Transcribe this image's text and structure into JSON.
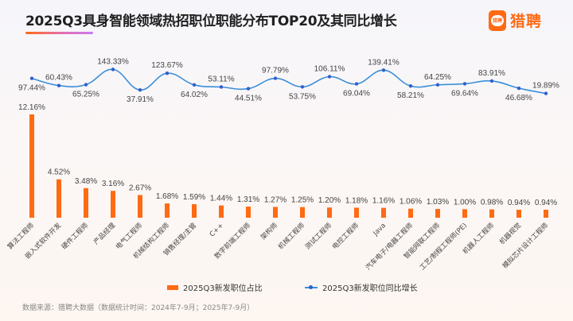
{
  "header": {
    "title": "2025Q3具身智能领域热招职位职能分布TOP20及其同比增长",
    "logo_badge_text": "猎聘",
    "logo_text": "猎聘",
    "brand_color": "#ff6a13"
  },
  "chart_data": {
    "type": "bar+line",
    "title": "2025Q3具身智能领域热招职位职能分布TOP20及其同比增长",
    "categories": [
      "算法工程师",
      "嵌入式软件开发",
      "硬件工程师",
      "产品经理",
      "电气工程师",
      "机械结构工程师",
      "销售经理/主管",
      "C++",
      "数字前端工程师",
      "架构师",
      "机械工程师",
      "测试工程师",
      "电控工程师",
      "Java",
      "汽车电子/电器工程师",
      "智能网联工程师",
      "工艺/制程工程师(PE)",
      "机器人工程师",
      "机器视觉",
      "模拟芯片设计工程师"
    ],
    "series": [
      {
        "name": "2025Q3新发职位占比",
        "type": "bar",
        "color": "#ff6a13",
        "unit": "%",
        "values": [
          12.16,
          4.52,
          3.48,
          3.16,
          2.67,
          1.68,
          1.59,
          1.44,
          1.31,
          1.27,
          1.25,
          1.2,
          1.18,
          1.16,
          1.06,
          1.03,
          1.0,
          0.98,
          0.94,
          0.94
        ],
        "labels": [
          "12.16%",
          "4.52%",
          "3.48%",
          "3.16%",
          "2.67%",
          "1.68%",
          "1.59%",
          "1.44%",
          "1.31%",
          "1.27%",
          "1.25%",
          "1.20%",
          "1.18%",
          "1.16%",
          "1.06%",
          "1.03%",
          "1.00%",
          "0.98%",
          "0.94%",
          "0.94%"
        ]
      },
      {
        "name": "2025Q3新发职位同比增长",
        "type": "line",
        "color": "#3a8fd8",
        "marker_color": "#2f5fd0",
        "unit": "%",
        "values": [
          97.44,
          60.43,
          65.25,
          143.33,
          37.91,
          123.67,
          64.02,
          53.11,
          44.51,
          97.79,
          53.75,
          106.11,
          69.04,
          139.41,
          58.21,
          64.25,
          69.64,
          83.91,
          46.68,
          19.89
        ],
        "labels": [
          "97.44%",
          "60.43%",
          "65.25%",
          "143.33%",
          "37.91%",
          "123.67%",
          "64.02%",
          "53.11%",
          "44.51%",
          "97.79%",
          "53.75%",
          "106.11%",
          "69.04%",
          "139.41%",
          "58.21%",
          "64.25%",
          "69.64%",
          "83.91%",
          "46.68%",
          "19.89%"
        ],
        "label_positions": [
          "below",
          "above",
          "below",
          "above",
          "below",
          "above",
          "below",
          "above",
          "below",
          "above",
          "below",
          "above",
          "below",
          "above",
          "below",
          "above",
          "below",
          "above",
          "below",
          "above"
        ]
      }
    ],
    "legend_position": "bottom",
    "grid": false
  },
  "legend": {
    "bar_label": "2025Q3新发职位占比",
    "line_label": "2025Q3新发职位同比增长"
  },
  "footer": {
    "source": "数据来源：猎聘大数据（数据统计时间：2024年7-9月；2025年7-9月）"
  }
}
